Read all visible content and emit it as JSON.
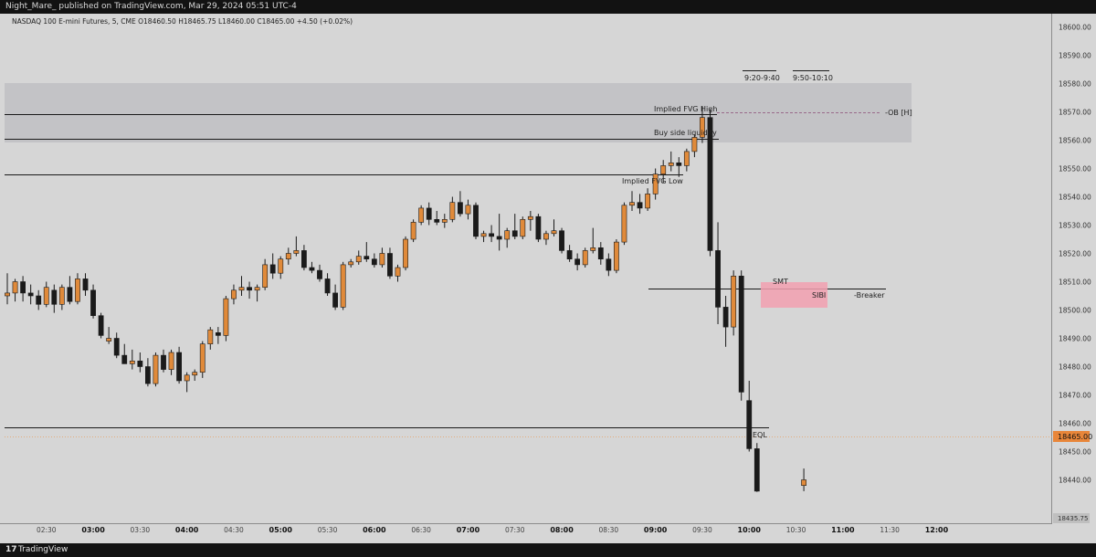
{
  "header": {
    "publish_line": "Night_Mare_ published on TradingView.com, Mar 29, 2024 05:51 UTC-4"
  },
  "symbol_line": "NASDAQ 100 E-mini Futures, 5, CME  O18460.50  H18465.75  L18460.00  C18465.00  +4.50 (+0.02%)",
  "footer": {
    "brand": "TradingView",
    "logo_glyph": "17"
  },
  "price_axis": {
    "labels": [
      "18600.00",
      "18590.00",
      "18580.00",
      "18570.00",
      "18560.00",
      "18550.00",
      "18540.00",
      "18530.00",
      "18520.00",
      "18510.00",
      "18500.00",
      "18490.00",
      "18480.00",
      "18470.00",
      "18460.00",
      "18450.00",
      "18440.00"
    ],
    "current_price": "18465.00",
    "current_price_color": "#e8863a",
    "bottom_price": "18435.75"
  },
  "time_axis": {
    "labels": [
      "02:30",
      "03:00",
      "03:30",
      "04:00",
      "04:30",
      "05:00",
      "05:30",
      "06:00",
      "06:30",
      "07:00",
      "07:30",
      "08:00",
      "08:30",
      "09:00",
      "09:30",
      "10:00",
      "10:30",
      "11:00",
      "11:30",
      "12:00"
    ],
    "bold": [
      "03:00",
      "04:00",
      "05:00",
      "06:00",
      "07:00",
      "08:00",
      "09:00",
      "10:00",
      "11:00",
      "12:00"
    ]
  },
  "annotations": {
    "implied_fvg_high": "Implied FVG High",
    "buy_side_liquidity": "Buy side liquidity",
    "implied_fvg_low": "Implied FVG Low",
    "ob": "-OB [H]",
    "smt": "SMT",
    "sibi": "SIBI",
    "breaker": "-Breaker",
    "eql": "EQL",
    "session_1": "9:20-9:40",
    "session_2": "9:50-10:10"
  },
  "colors": {
    "bull": "#e08a3a",
    "bear": "#1a1a1a",
    "sibi_box": "#f2a0b0",
    "ob_box": "#c3c3c6"
  },
  "chart_data": {
    "type": "candlestick",
    "interval": "5",
    "ylim": [
      18435.75,
      18605
    ],
    "x_start": "02:05",
    "candles": [
      {
        "t": "02:05",
        "o": 18505,
        "h": 18513,
        "l": 18502,
        "c": 18506
      },
      {
        "t": "02:10",
        "o": 18506,
        "h": 18511,
        "l": 18503,
        "c": 18510
      },
      {
        "t": "02:15",
        "o": 18510,
        "h": 18512,
        "l": 18503,
        "c": 18506
      },
      {
        "t": "02:20",
        "o": 18506,
        "h": 18509,
        "l": 18502,
        "c": 18505
      },
      {
        "t": "02:25",
        "o": 18505,
        "h": 18507,
        "l": 18500,
        "c": 18502
      },
      {
        "t": "02:30",
        "o": 18502,
        "h": 18510,
        "l": 18501,
        "c": 18508
      },
      {
        "t": "02:35",
        "o": 18507,
        "h": 18509,
        "l": 18499,
        "c": 18502
      },
      {
        "t": "02:40",
        "o": 18502,
        "h": 18509,
        "l": 18500,
        "c": 18508
      },
      {
        "t": "02:45",
        "o": 18508,
        "h": 18512,
        "l": 18502,
        "c": 18503
      },
      {
        "t": "02:50",
        "o": 18503,
        "h": 18513,
        "l": 18502,
        "c": 18511
      },
      {
        "t": "02:55",
        "o": 18511,
        "h": 18513,
        "l": 18505,
        "c": 18507
      },
      {
        "t": "03:00",
        "o": 18507,
        "h": 18509,
        "l": 18497,
        "c": 18498
      },
      {
        "t": "03:05",
        "o": 18498,
        "h": 18499,
        "l": 18490,
        "c": 18491
      },
      {
        "t": "03:10",
        "o": 18489,
        "h": 18494,
        "l": 18488,
        "c": 18490
      },
      {
        "t": "03:15",
        "o": 18490,
        "h": 18492,
        "l": 18483,
        "c": 18484
      },
      {
        "t": "03:20",
        "o": 18484,
        "h": 18488,
        "l": 18481,
        "c": 18481
      },
      {
        "t": "03:25",
        "o": 18481,
        "h": 18486,
        "l": 18479,
        "c": 18482
      },
      {
        "t": "03:30",
        "o": 18482,
        "h": 18485,
        "l": 18478,
        "c": 18480
      },
      {
        "t": "03:35",
        "o": 18480,
        "h": 18483,
        "l": 18473,
        "c": 18474
      },
      {
        "t": "03:40",
        "o": 18474,
        "h": 18485,
        "l": 18473,
        "c": 18484
      },
      {
        "t": "03:45",
        "o": 18484,
        "h": 18486,
        "l": 18478,
        "c": 18479
      },
      {
        "t": "03:50",
        "o": 18479,
        "h": 18486,
        "l": 18477,
        "c": 18485
      },
      {
        "t": "03:55",
        "o": 18485,
        "h": 18487,
        "l": 18474,
        "c": 18475
      },
      {
        "t": "04:00",
        "o": 18475,
        "h": 18478,
        "l": 18471,
        "c": 18477
      },
      {
        "t": "04:05",
        "o": 18477,
        "h": 18479,
        "l": 18475,
        "c": 18478
      },
      {
        "t": "04:10",
        "o": 18478,
        "h": 18489,
        "l": 18476,
        "c": 18488
      },
      {
        "t": "04:15",
        "o": 18488,
        "h": 18494,
        "l": 18486,
        "c": 18493
      },
      {
        "t": "04:20",
        "o": 18492,
        "h": 18494,
        "l": 18488,
        "c": 18491
      },
      {
        "t": "04:25",
        "o": 18491,
        "h": 18505,
        "l": 18489,
        "c": 18504
      },
      {
        "t": "04:30",
        "o": 18504,
        "h": 18509,
        "l": 18502,
        "c": 18507
      },
      {
        "t": "04:35",
        "o": 18507,
        "h": 18512,
        "l": 18505,
        "c": 18508
      },
      {
        "t": "04:40",
        "o": 18508,
        "h": 18510,
        "l": 18504,
        "c": 18507
      },
      {
        "t": "04:45",
        "o": 18507,
        "h": 18509,
        "l": 18503,
        "c": 18508
      },
      {
        "t": "04:50",
        "o": 18508,
        "h": 18518,
        "l": 18507,
        "c": 18516
      },
      {
        "t": "04:55",
        "o": 18516,
        "h": 18520,
        "l": 18511,
        "c": 18513
      },
      {
        "t": "05:00",
        "o": 18513,
        "h": 18519,
        "l": 18511,
        "c": 18518
      },
      {
        "t": "05:05",
        "o": 18518,
        "h": 18522,
        "l": 18516,
        "c": 18520
      },
      {
        "t": "05:10",
        "o": 18520,
        "h": 18526,
        "l": 18519,
        "c": 18521
      },
      {
        "t": "05:15",
        "o": 18521,
        "h": 18523,
        "l": 18514,
        "c": 18515
      },
      {
        "t": "05:20",
        "o": 18515,
        "h": 18517,
        "l": 18513,
        "c": 18514
      },
      {
        "t": "05:25",
        "o": 18514,
        "h": 18516,
        "l": 18510,
        "c": 18511
      },
      {
        "t": "05:30",
        "o": 18511,
        "h": 18513,
        "l": 18505,
        "c": 18506
      },
      {
        "t": "05:35",
        "o": 18506,
        "h": 18509,
        "l": 18500,
        "c": 18501
      },
      {
        "t": "05:40",
        "o": 18501,
        "h": 18517,
        "l": 18500,
        "c": 18516
      },
      {
        "t": "05:45",
        "o": 18516,
        "h": 18518,
        "l": 18515,
        "c": 18517
      },
      {
        "t": "05:50",
        "o": 18517,
        "h": 18521,
        "l": 18516,
        "c": 18519
      },
      {
        "t": "05:55",
        "o": 18519,
        "h": 18524,
        "l": 18517,
        "c": 18518
      },
      {
        "t": "06:00",
        "o": 18518,
        "h": 18520,
        "l": 18515,
        "c": 18516
      },
      {
        "t": "06:05",
        "o": 18516,
        "h": 18522,
        "l": 18515,
        "c": 18520
      },
      {
        "t": "06:10",
        "o": 18520,
        "h": 18522,
        "l": 18511,
        "c": 18512
      },
      {
        "t": "06:15",
        "o": 18512,
        "h": 18516,
        "l": 18510,
        "c": 18515
      },
      {
        "t": "06:20",
        "o": 18515,
        "h": 18526,
        "l": 18514,
        "c": 18525
      },
      {
        "t": "06:25",
        "o": 18525,
        "h": 18532,
        "l": 18524,
        "c": 18531
      },
      {
        "t": "06:30",
        "o": 18531,
        "h": 18537,
        "l": 18530,
        "c": 18536
      },
      {
        "t": "06:35",
        "o": 18536,
        "h": 18538,
        "l": 18530,
        "c": 18532
      },
      {
        "t": "06:40",
        "o": 18532,
        "h": 18535,
        "l": 18530,
        "c": 18531
      },
      {
        "t": "06:45",
        "o": 18531,
        "h": 18534,
        "l": 18529,
        "c": 18532
      },
      {
        "t": "06:50",
        "o": 18532,
        "h": 18540,
        "l": 18531,
        "c": 18538
      },
      {
        "t": "06:55",
        "o": 18538,
        "h": 18542,
        "l": 18533,
        "c": 18534
      },
      {
        "t": "07:00",
        "o": 18534,
        "h": 18539,
        "l": 18532,
        "c": 18537
      },
      {
        "t": "07:05",
        "o": 18537,
        "h": 18538,
        "l": 18525,
        "c": 18526
      },
      {
        "t": "07:10",
        "o": 18526,
        "h": 18528,
        "l": 18524,
        "c": 18527
      },
      {
        "t": "07:15",
        "o": 18527,
        "h": 18530,
        "l": 18524,
        "c": 18526
      },
      {
        "t": "07:20",
        "o": 18526,
        "h": 18534,
        "l": 18521,
        "c": 18525
      },
      {
        "t": "07:25",
        "o": 18525,
        "h": 18529,
        "l": 18522,
        "c": 18528
      },
      {
        "t": "07:30",
        "o": 18528,
        "h": 18534,
        "l": 18525,
        "c": 18526
      },
      {
        "t": "07:35",
        "o": 18526,
        "h": 18533,
        "l": 18525,
        "c": 18532
      },
      {
        "t": "07:40",
        "o": 18532,
        "h": 18535,
        "l": 18528,
        "c": 18533
      },
      {
        "t": "07:45",
        "o": 18533,
        "h": 18534,
        "l": 18524,
        "c": 18525
      },
      {
        "t": "07:50",
        "o": 18525,
        "h": 18528,
        "l": 18523,
        "c": 18527
      },
      {
        "t": "07:55",
        "o": 18527,
        "h": 18532,
        "l": 18526,
        "c": 18528
      },
      {
        "t": "08:00",
        "o": 18528,
        "h": 18529,
        "l": 18520,
        "c": 18521
      },
      {
        "t": "08:05",
        "o": 18521,
        "h": 18523,
        "l": 18517,
        "c": 18518
      },
      {
        "t": "08:10",
        "o": 18518,
        "h": 18520,
        "l": 18514,
        "c": 18516
      },
      {
        "t": "08:15",
        "o": 18516,
        "h": 18522,
        "l": 18515,
        "c": 18521
      },
      {
        "t": "08:20",
        "o": 18521,
        "h": 18529,
        "l": 18520,
        "c": 18522
      },
      {
        "t": "08:25",
        "o": 18522,
        "h": 18524,
        "l": 18516,
        "c": 18518
      },
      {
        "t": "08:30",
        "o": 18518,
        "h": 18520,
        "l": 18512,
        "c": 18514
      },
      {
        "t": "08:35",
        "o": 18514,
        "h": 18525,
        "l": 18513,
        "c": 18524
      },
      {
        "t": "08:40",
        "o": 18524,
        "h": 18538,
        "l": 18523,
        "c": 18537
      },
      {
        "t": "08:45",
        "o": 18537,
        "h": 18542,
        "l": 18535,
        "c": 18538
      },
      {
        "t": "08:50",
        "o": 18538,
        "h": 18541,
        "l": 18534,
        "c": 18536
      },
      {
        "t": "08:55",
        "o": 18536,
        "h": 18543,
        "l": 18535,
        "c": 18541
      },
      {
        "t": "09:00",
        "o": 18541,
        "h": 18550,
        "l": 18539,
        "c": 18548
      },
      {
        "t": "09:05",
        "o": 18548,
        "h": 18553,
        "l": 18545,
        "c": 18551
      },
      {
        "t": "09:10",
        "o": 18551,
        "h": 18556,
        "l": 18549,
        "c": 18552
      },
      {
        "t": "09:15",
        "o": 18552,
        "h": 18554,
        "l": 18547,
        "c": 18551
      },
      {
        "t": "09:20",
        "o": 18551,
        "h": 18557,
        "l": 18549,
        "c": 18556
      },
      {
        "t": "09:25",
        "o": 18556,
        "h": 18562,
        "l": 18554,
        "c": 18561
      },
      {
        "t": "09:30",
        "o": 18561,
        "h": 18572,
        "l": 18559,
        "c": 18568
      },
      {
        "t": "09:35",
        "o": 18568,
        "h": 18571,
        "l": 18519,
        "c": 18521
      },
      {
        "t": "09:40",
        "o": 18521,
        "h": 18531,
        "l": 18495,
        "c": 18501
      },
      {
        "t": "09:45",
        "o": 18501,
        "h": 18505,
        "l": 18487,
        "c": 18494
      },
      {
        "t": "09:50",
        "o": 18494,
        "h": 18514,
        "l": 18491,
        "c": 18512
      },
      {
        "t": "09:55",
        "o": 18512,
        "h": 18514,
        "l": 18468,
        "c": 18471
      },
      {
        "t": "10:00",
        "o": 18468,
        "h": 18475,
        "l": 18450,
        "c": 18451
      },
      {
        "t": "10:05",
        "o": 18451,
        "h": 18453,
        "l": 18435.75,
        "c": 18436
      },
      {
        "t": "10:35",
        "o": 18438,
        "h": 18444,
        "l": 18436,
        "c": 18440
      }
    ]
  }
}
